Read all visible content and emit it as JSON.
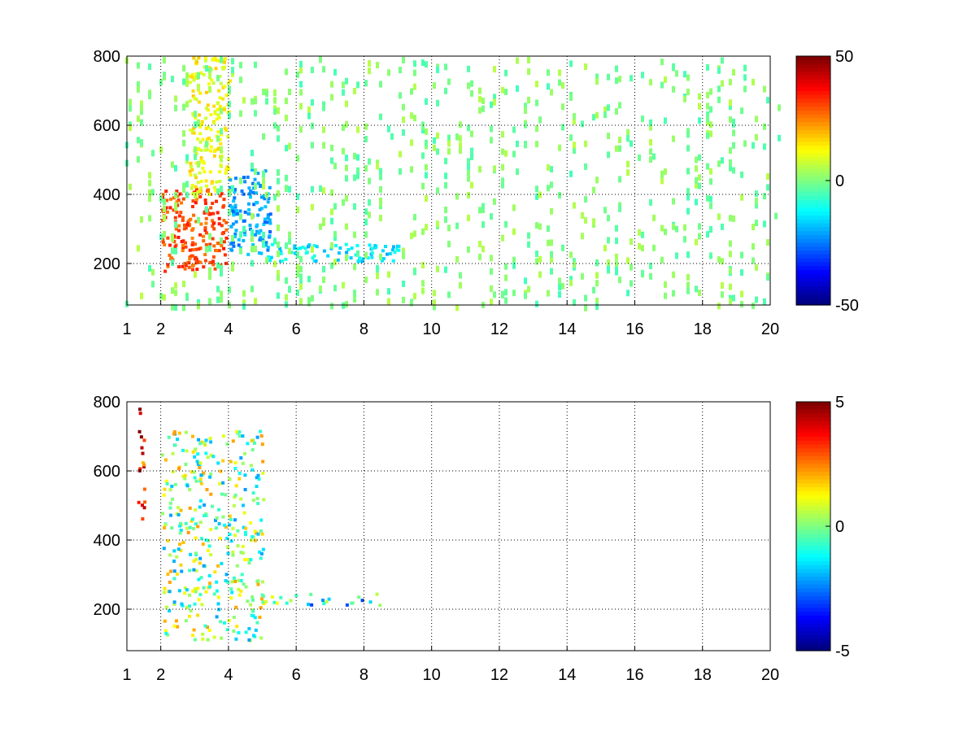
{
  "chart_data": [
    {
      "type": "heatmap",
      "title": "",
      "xlabel": "",
      "ylabel": "",
      "xlim": [
        1,
        20
      ],
      "ylim": [
        80,
        800
      ],
      "x_ticks": [
        "1",
        "2",
        "4",
        "6",
        "8",
        "10",
        "12",
        "14",
        "16",
        "18",
        "20"
      ],
      "x_tick_values": [
        1,
        2,
        4,
        6,
        8,
        10,
        12,
        14,
        16,
        18,
        20
      ],
      "y_ticks": [
        "200",
        "400",
        "600",
        "800"
      ],
      "y_tick_values": [
        200,
        400,
        600,
        800
      ],
      "grid": true,
      "colormap": "jet",
      "colorbar": {
        "range": [
          -50,
          50
        ],
        "ticks": [
          "50",
          "0",
          "-50"
        ],
        "tick_values": [
          50,
          0,
          -50
        ]
      },
      "description_of_data": "sparse noisy field; dense positive (orange-red) ridge rising from x≈2,y≈200 to x≈3.8,y≈400; negative (cyan-blue) band near x≈4–5, y≈250–450; cyan/blue horizontal band at y≈230 from x≈5 to x≈9; scattered near-zero (green/yellow) cells in vertical stripes up to x=20",
      "regions": [
        {
          "x": [
            2.0,
            3.9
          ],
          "y": [
            180,
            420
          ],
          "value": 30
        },
        {
          "x": [
            2.8,
            4.0
          ],
          "y": [
            400,
            800
          ],
          "value": 12
        },
        {
          "x": [
            4.0,
            5.2
          ],
          "y": [
            230,
            480
          ],
          "value": -22
        },
        {
          "x": [
            5.0,
            9.0
          ],
          "y": [
            210,
            260
          ],
          "value": -15
        },
        {
          "x": [
            1.0,
            20.0
          ],
          "y": [
            80,
            800
          ],
          "value": 0
        }
      ]
    },
    {
      "type": "heatmap",
      "title": "",
      "xlabel": "",
      "ylabel": "",
      "xlim": [
        1,
        20
      ],
      "ylim": [
        80,
        800
      ],
      "x_ticks": [
        "1",
        "2",
        "4",
        "6",
        "8",
        "10",
        "12",
        "14",
        "16",
        "18",
        "20"
      ],
      "x_tick_values": [
        1,
        2,
        4,
        6,
        8,
        10,
        12,
        14,
        16,
        18,
        20
      ],
      "y_ticks": [
        "200",
        "400",
        "600",
        "800"
      ],
      "y_tick_values": [
        200,
        400,
        600,
        800
      ],
      "grid": true,
      "colormap": "jet",
      "colorbar": {
        "range": [
          -5,
          5
        ],
        "ticks": [
          "5",
          "0",
          "-5"
        ],
        "tick_values": [
          5,
          0,
          -5
        ]
      },
      "description_of_data": "sparse cluster of mixed-sign values between x≈2 and x≈5, y≈100–720, strongest near x≈3.6, y≈200–450; thin horizontal band at y≈230 from x≈5 to x≈8.5; a few isolated cells near x≈1.4, y≈500–800",
      "regions": [
        {
          "x": [
            2.0,
            5.0
          ],
          "y": [
            110,
            720
          ],
          "value": 0
        },
        {
          "x": [
            5.0,
            8.6
          ],
          "y": [
            215,
            250
          ],
          "value": -1
        },
        {
          "x": [
            1.3,
            1.5
          ],
          "y": [
            400,
            800
          ],
          "value": 4
        }
      ]
    }
  ]
}
